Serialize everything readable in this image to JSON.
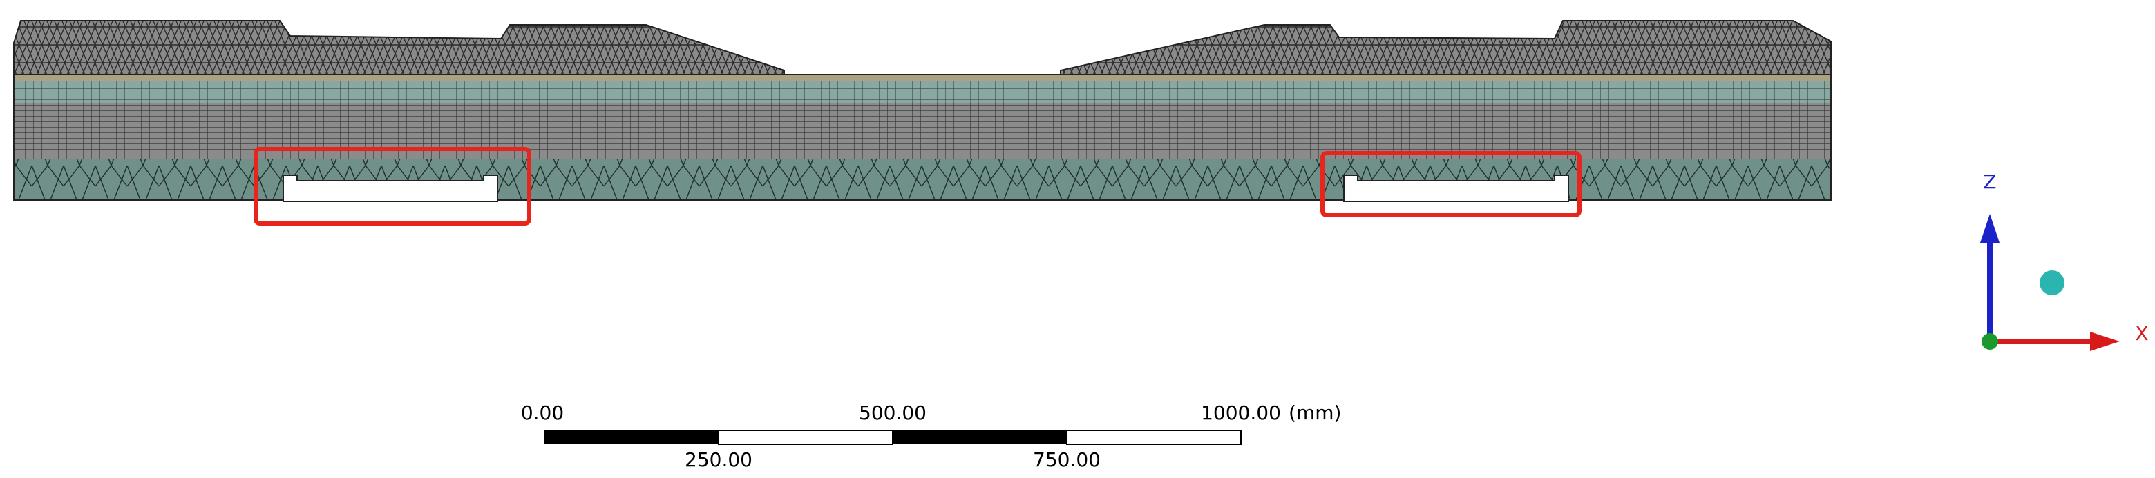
{
  "scale_bar": {
    "top_labels": [
      "0.00",
      "500.00",
      "1000.00"
    ],
    "unit": "(mm)",
    "bottom_labels": [
      "250.00",
      "750.00"
    ]
  },
  "triad": {
    "z_label": "Z",
    "x_label": "X"
  }
}
